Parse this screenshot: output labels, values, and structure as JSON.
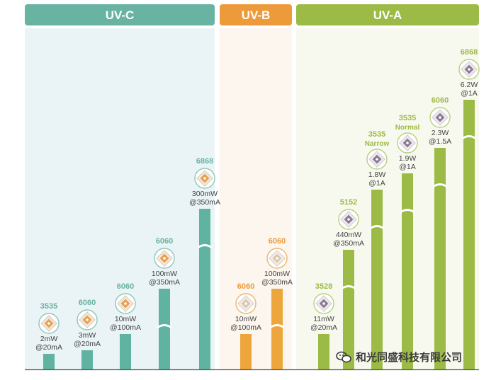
{
  "chart_data": {
    "type": "bar",
    "groups": [
      {
        "name": "UV-C",
        "color": "#69b3a2",
        "bar_color": "#5fb3a0"
      },
      {
        "name": "UV-B",
        "color": "#ec9a3a",
        "bar_color": "#eca63b"
      },
      {
        "name": "UV-A",
        "color": "#9cbb46",
        "bar_color": "#9cbb46"
      }
    ],
    "bars": [
      {
        "group": "UV-C",
        "package": "3535",
        "power": "2mW",
        "current": "@20mA",
        "value_mw": 2
      },
      {
        "group": "UV-C",
        "package": "6060",
        "power": "3mW",
        "current": "@20mA",
        "value_mw": 3
      },
      {
        "group": "UV-C",
        "package": "6060",
        "power": "10mW",
        "current": "@100mA",
        "value_mw": 10
      },
      {
        "group": "UV-C",
        "package": "6060",
        "power": "100mW",
        "current": "@350mA",
        "value_mw": 100
      },
      {
        "group": "UV-C",
        "package": "6868",
        "power": "300mW",
        "current": "@350mA",
        "value_mw": 300
      },
      {
        "group": "UV-B",
        "package": "6060",
        "power": "10mW",
        "current": "@100mA",
        "value_mw": 10
      },
      {
        "group": "UV-B",
        "package": "6060",
        "power": "100mW",
        "current": "@350mA",
        "value_mw": 100
      },
      {
        "group": "UV-A",
        "package": "3528",
        "power": "11mW",
        "current": "@20mA",
        "value_mw": 11
      },
      {
        "group": "UV-A",
        "package": "5152",
        "power": "440mW",
        "current": "@350mA",
        "value_mw": 440
      },
      {
        "group": "UV-A",
        "package": "3535",
        "subtitle": "Narrow",
        "power": "1.8W",
        "current": "@1A",
        "value_mw": 1800
      },
      {
        "group": "UV-A",
        "package": "3535",
        "subtitle": "Normal",
        "power": "1.9W",
        "current": "@1A",
        "value_mw": 1900
      },
      {
        "group": "UV-A",
        "package": "6060",
        "power": "2.3W",
        "current": "@1.5A",
        "value_mw": 2300
      },
      {
        "group": "UV-A",
        "package": "6868",
        "power": "6.2W",
        "current": "@1A",
        "value_mw": 6200
      }
    ],
    "axis_breaks": true,
    "legend": "none"
  },
  "watermark": {
    "text": "和光同盛科技有限公司"
  }
}
